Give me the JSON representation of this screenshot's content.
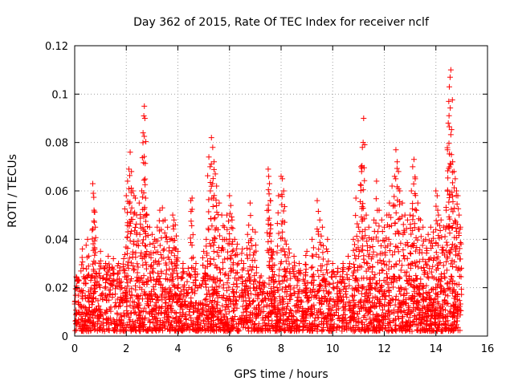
{
  "chart_data": {
    "type": "scatter",
    "title": "Day 362 of 2015, Rate Of TEC Index for receiver nclf",
    "xlabel": "GPS time / hours",
    "ylabel": "ROTI / TECUs",
    "xlim": [
      0,
      16
    ],
    "ylim": [
      0,
      0.12
    ],
    "xticks": [
      0,
      2,
      4,
      6,
      8,
      10,
      12,
      14,
      16
    ],
    "xtick_labels": [
      "0",
      "2",
      "4",
      "6",
      "8",
      "10",
      "12",
      "14",
      "16"
    ],
    "yticks": [
      0,
      0.02,
      0.04,
      0.06,
      0.08,
      0.1,
      0.12
    ],
    "ytick_labels": [
      "0",
      "0.02",
      "0.04",
      "0.06",
      "0.08",
      "0.1",
      "0.12"
    ],
    "grid": true,
    "marker": "plus",
    "marker_color": "#ff0000",
    "data_x_range": [
      0,
      15
    ],
    "series": [
      {
        "name": "ROTI",
        "points": [
          [
            0.3,
            0.036
          ],
          [
            0.5,
            0.04
          ],
          [
            0.7,
            0.063
          ],
          [
            0.72,
            0.059
          ],
          [
            0.75,
            0.052
          ],
          [
            0.8,
            0.045
          ],
          [
            1.0,
            0.035
          ],
          [
            1.2,
            0.03
          ],
          [
            1.3,
            0.033
          ],
          [
            1.5,
            0.032
          ],
          [
            1.7,
            0.03
          ],
          [
            1.9,
            0.032
          ],
          [
            2.0,
            0.058
          ],
          [
            2.05,
            0.064
          ],
          [
            2.1,
            0.069
          ],
          [
            2.15,
            0.076
          ],
          [
            2.2,
            0.068
          ],
          [
            2.25,
            0.06
          ],
          [
            2.3,
            0.058
          ],
          [
            2.35,
            0.057
          ],
          [
            2.4,
            0.05
          ],
          [
            2.5,
            0.055
          ],
          [
            2.6,
            0.06
          ],
          [
            2.65,
            0.084
          ],
          [
            2.68,
            0.091
          ],
          [
            2.7,
            0.095
          ],
          [
            2.72,
            0.09
          ],
          [
            2.75,
            0.057
          ],
          [
            2.8,
            0.05
          ],
          [
            2.9,
            0.045
          ],
          [
            3.0,
            0.042
          ],
          [
            3.1,
            0.04
          ],
          [
            3.2,
            0.045
          ],
          [
            3.3,
            0.052
          ],
          [
            3.4,
            0.053
          ],
          [
            3.5,
            0.048
          ],
          [
            3.6,
            0.045
          ],
          [
            3.7,
            0.04
          ],
          [
            3.8,
            0.05
          ],
          [
            3.85,
            0.048
          ],
          [
            3.9,
            0.046
          ],
          [
            4.0,
            0.035
          ],
          [
            4.2,
            0.03
          ],
          [
            4.4,
            0.028
          ],
          [
            4.5,
            0.056
          ],
          [
            4.55,
            0.057
          ],
          [
            4.7,
            0.03
          ],
          [
            5.0,
            0.035
          ],
          [
            5.1,
            0.04
          ],
          [
            5.2,
            0.074
          ],
          [
            5.25,
            0.07
          ],
          [
            5.3,
            0.082
          ],
          [
            5.35,
            0.078
          ],
          [
            5.4,
            0.072
          ],
          [
            5.45,
            0.067
          ],
          [
            5.5,
            0.062
          ],
          [
            5.6,
            0.055
          ],
          [
            5.7,
            0.05
          ],
          [
            5.8,
            0.045
          ],
          [
            5.9,
            0.05
          ],
          [
            6.0,
            0.058
          ],
          [
            6.05,
            0.054
          ],
          [
            6.1,
            0.048
          ],
          [
            6.2,
            0.04
          ],
          [
            6.3,
            0.038
          ],
          [
            6.5,
            0.036
          ],
          [
            6.7,
            0.042
          ],
          [
            6.8,
            0.055
          ],
          [
            6.9,
            0.044
          ],
          [
            7.0,
            0.043
          ],
          [
            7.5,
            0.069
          ],
          [
            7.52,
            0.066
          ],
          [
            7.55,
            0.063
          ],
          [
            7.58,
            0.056
          ],
          [
            7.6,
            0.046
          ],
          [
            7.7,
            0.035
          ],
          [
            7.9,
            0.058
          ],
          [
            8.0,
            0.066
          ],
          [
            8.05,
            0.065
          ],
          [
            8.1,
            0.06
          ],
          [
            8.2,
            0.038
          ],
          [
            8.3,
            0.036
          ],
          [
            8.5,
            0.033
          ],
          [
            8.7,
            0.03
          ],
          [
            9.0,
            0.035
          ],
          [
            9.2,
            0.04
          ],
          [
            9.4,
            0.056
          ],
          [
            9.5,
            0.048
          ],
          [
            9.6,
            0.045
          ],
          [
            9.8,
            0.04
          ],
          [
            10.0,
            0.03
          ],
          [
            10.2,
            0.028
          ],
          [
            10.4,
            0.03
          ],
          [
            10.6,
            0.033
          ],
          [
            10.8,
            0.04
          ],
          [
            10.9,
            0.057
          ],
          [
            11.0,
            0.045
          ],
          [
            11.1,
            0.07
          ],
          [
            11.12,
            0.068
          ],
          [
            11.15,
            0.078
          ],
          [
            11.18,
            0.08
          ],
          [
            11.2,
            0.09
          ],
          [
            11.3,
            0.05
          ],
          [
            11.4,
            0.045
          ],
          [
            11.5,
            0.04
          ],
          [
            11.6,
            0.048
          ],
          [
            11.7,
            0.064
          ],
          [
            11.8,
            0.052
          ],
          [
            11.9,
            0.048
          ],
          [
            12.0,
            0.045
          ],
          [
            12.1,
            0.05
          ],
          [
            12.2,
            0.055
          ],
          [
            12.3,
            0.062
          ],
          [
            12.4,
            0.066
          ],
          [
            12.45,
            0.077
          ],
          [
            12.5,
            0.072
          ],
          [
            12.55,
            0.068
          ],
          [
            12.6,
            0.06
          ],
          [
            12.7,
            0.055
          ],
          [
            12.8,
            0.05
          ],
          [
            12.9,
            0.048
          ],
          [
            13.0,
            0.05
          ],
          [
            13.05,
            0.06
          ],
          [
            13.1,
            0.07
          ],
          [
            13.15,
            0.073
          ],
          [
            13.2,
            0.065
          ],
          [
            13.3,
            0.055
          ],
          [
            13.4,
            0.048
          ],
          [
            13.5,
            0.045
          ],
          [
            13.6,
            0.04
          ],
          [
            13.7,
            0.042
          ],
          [
            13.8,
            0.045
          ],
          [
            13.9,
            0.043
          ],
          [
            14.0,
            0.06
          ],
          [
            14.05,
            0.058
          ],
          [
            14.1,
            0.05
          ],
          [
            14.2,
            0.048
          ],
          [
            14.3,
            0.045
          ],
          [
            14.4,
            0.052
          ],
          [
            14.45,
            0.077
          ],
          [
            14.48,
            0.088
          ],
          [
            14.5,
            0.097
          ],
          [
            14.52,
            0.103
          ],
          [
            14.55,
            0.107
          ],
          [
            14.58,
            0.11
          ],
          [
            14.6,
            0.075
          ],
          [
            14.65,
            0.072
          ],
          [
            14.7,
            0.068
          ],
          [
            14.75,
            0.065
          ],
          [
            14.8,
            0.06
          ],
          [
            14.85,
            0.058
          ],
          [
            14.9,
            0.05
          ],
          [
            14.95,
            0.045
          ]
        ]
      }
    ],
    "dense_band": {
      "description": "dense cluster of ROTI markers across the full time range",
      "typical_min": 0.002,
      "typical_max": 0.025,
      "x_range": [
        0,
        15
      ]
    }
  }
}
